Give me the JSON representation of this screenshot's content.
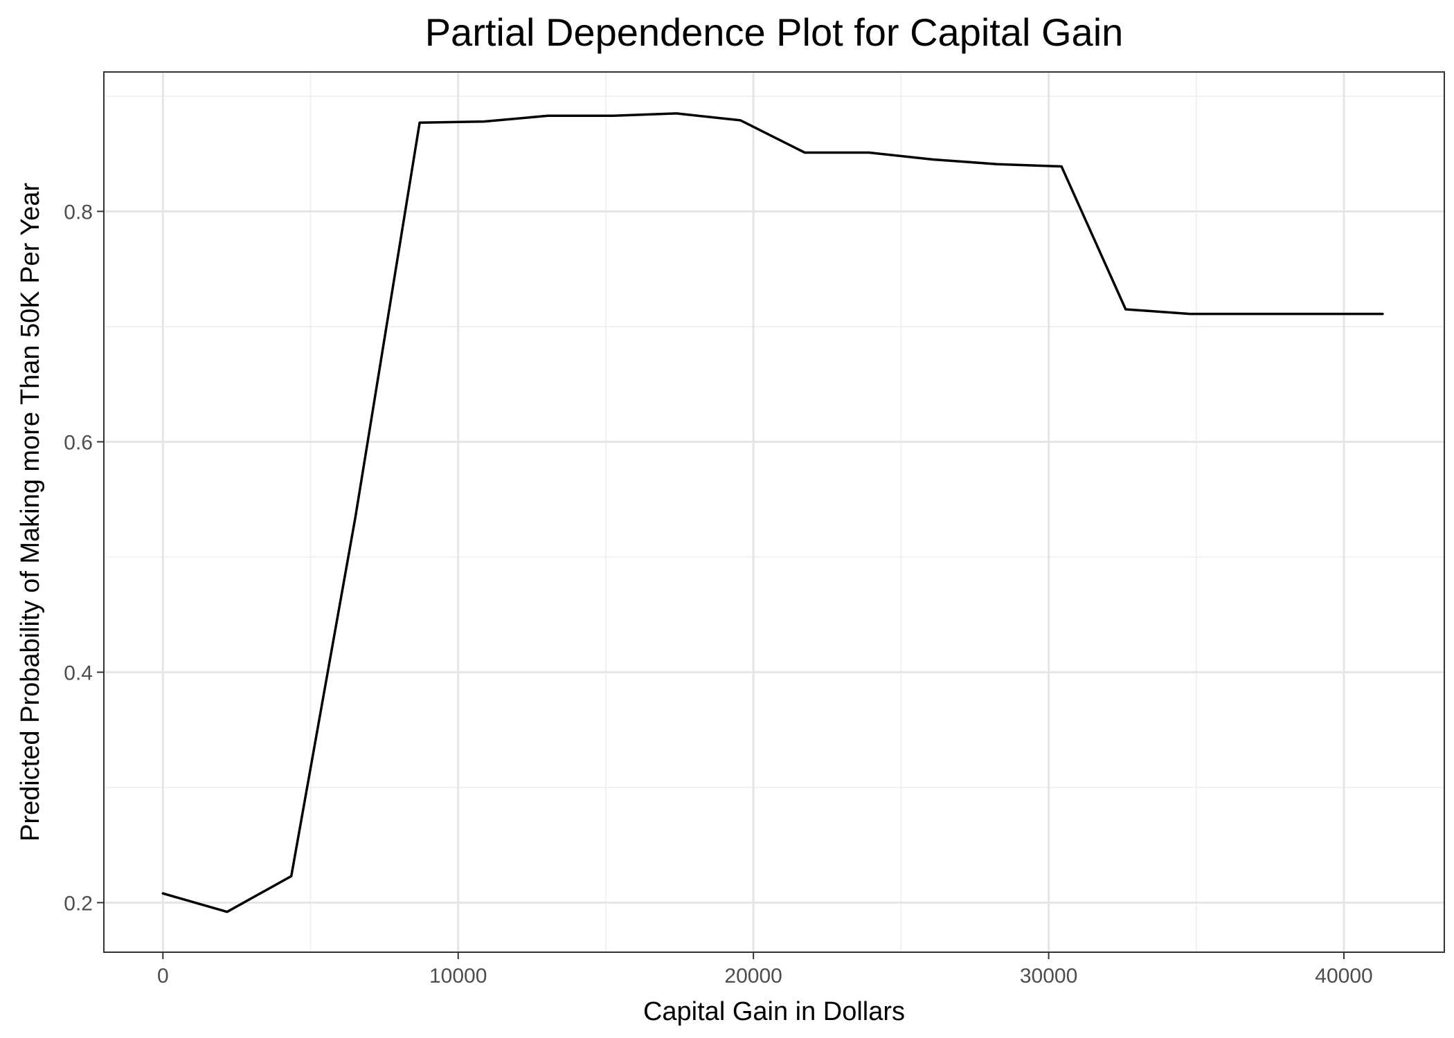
{
  "chart_data": {
    "type": "line",
    "title": "Partial Dependence Plot for Capital Gain",
    "xlabel": "Capital Gain in Dollars",
    "ylabel": "Predicted Probability of Making more Than 50K Per Year",
    "xlim": [
      -2000,
      43400
    ],
    "ylim": [
      0.157,
      0.921
    ],
    "x_ticks": [
      0,
      10000,
      20000,
      30000,
      40000
    ],
    "x_tick_labels": [
      "0",
      "10000",
      "20000",
      "30000",
      "40000"
    ],
    "y_ticks": [
      0.2,
      0.4,
      0.6,
      0.8
    ],
    "y_tick_labels": [
      "0.2",
      "0.4",
      "0.6",
      "0.8"
    ],
    "x_minor_ticks": [
      5000,
      15000,
      25000,
      35000
    ],
    "y_minor_ticks": [
      0.3,
      0.5,
      0.7,
      0.9
    ],
    "grid": true,
    "legend": "none",
    "series": [
      {
        "color": "#000000",
        "x": [
          0,
          2174,
          4348,
          6522,
          8696,
          10870,
          13043,
          15217,
          17391,
          19565,
          21739,
          23913,
          26087,
          28261,
          30435,
          32609,
          34783,
          36957,
          39130,
          41310
        ],
        "y": [
          0.208,
          0.192,
          0.223,
          0.535,
          0.877,
          0.878,
          0.883,
          0.883,
          0.885,
          0.879,
          0.851,
          0.851,
          0.845,
          0.841,
          0.839,
          0.715,
          0.711,
          0.711,
          0.711,
          0.711
        ]
      }
    ]
  }
}
